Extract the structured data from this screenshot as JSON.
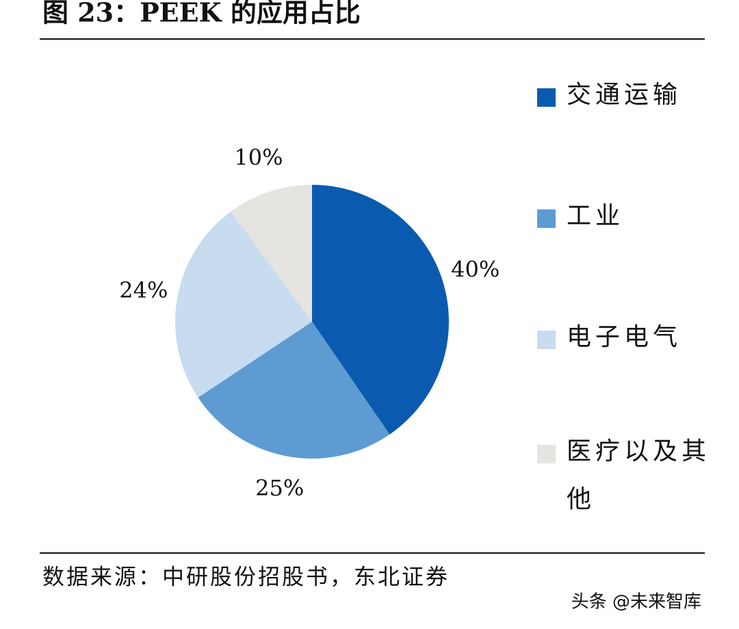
{
  "chart_data": {
    "type": "pie",
    "title": "图 23：PEEK 的应用占比",
    "categories": [
      "交通运输",
      "工业",
      "电子电气",
      "医疗以及其他"
    ],
    "values": [
      40,
      25,
      24,
      10
    ],
    "value_labels": [
      "40%",
      "25%",
      "24%",
      "10%"
    ],
    "colors": [
      "#0a5bb0",
      "#5e9bd3",
      "#c8dcf0",
      "#e6e4e0"
    ],
    "legend": "right",
    "source": "数据来源：中研股份招股书，东北证券",
    "watermark": "头条 @未来智库"
  }
}
